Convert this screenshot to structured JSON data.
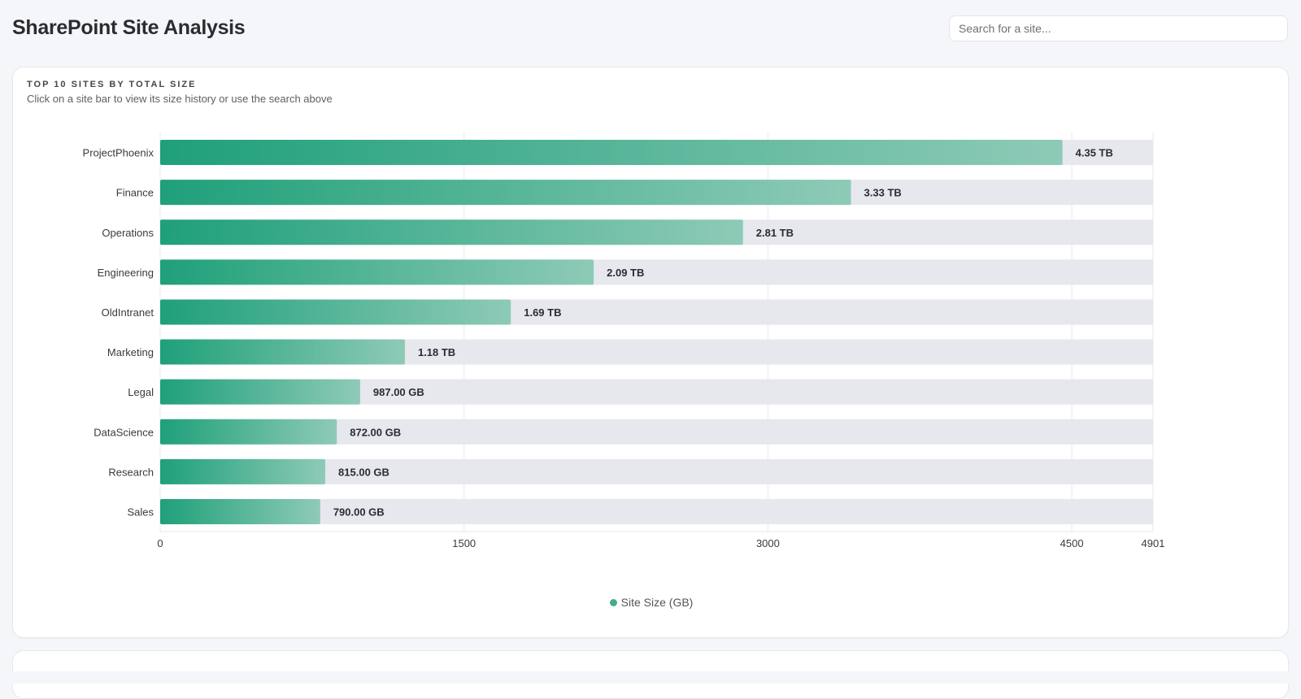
{
  "header": {
    "title": "SharePoint Site Analysis",
    "search_placeholder": "Search for a site..."
  },
  "card": {
    "title": "TOP 10 SITES BY TOTAL SIZE",
    "subtitle": "Click on a site bar to view its size history or use the search above"
  },
  "colors": {
    "bar_start": "#1fa07a",
    "bar_end": "#8ecab7",
    "track": "#e6e8ee",
    "grid": "#e9eaee"
  },
  "chart_data": {
    "type": "bar",
    "orientation": "horizontal",
    "categories": [
      "ProjectPhoenix",
      "Finance",
      "Operations",
      "Engineering",
      "OldIntranet",
      "Marketing",
      "Legal",
      "DataScience",
      "Research",
      "Sales"
    ],
    "series": [
      {
        "name": "Site Size (GB)",
        "values": [
          4454,
          3410,
          2877,
          2140,
          1731,
          1208,
          987,
          872,
          815,
          790
        ],
        "labels": [
          "4.35 TB",
          "3.33 TB",
          "2.81 TB",
          "2.09 TB",
          "1.69 TB",
          "1.18 TB",
          "987.00 GB",
          "872.00 GB",
          "815.00 GB",
          "790.00 GB"
        ]
      }
    ],
    "xticks": [
      0,
      1500,
      3000,
      4500,
      4901
    ],
    "xlim": [
      0,
      4901
    ],
    "grid": true,
    "legend_position": "bottom"
  }
}
